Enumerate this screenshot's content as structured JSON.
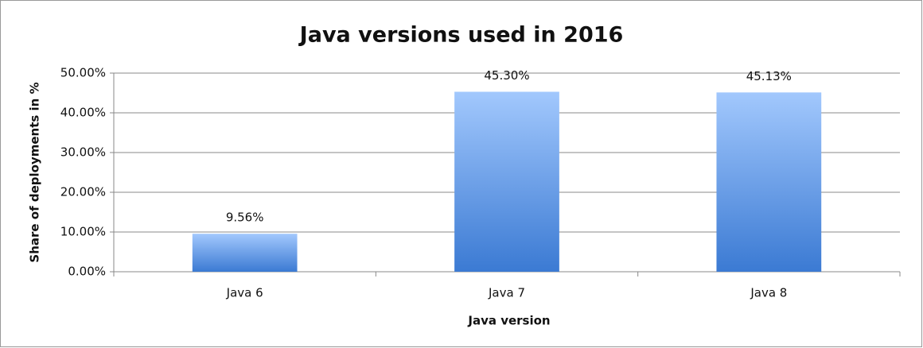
{
  "chart_data": {
    "type": "bar",
    "title": "Java versions used in 2016",
    "x_label": "Java version",
    "y_label": "Share of deployments in %",
    "categories": [
      "Java 6",
      "Java 7",
      "Java 8"
    ],
    "values": [
      9.56,
      45.3,
      45.13
    ],
    "value_labels": [
      "9.56%",
      "45.30%",
      "45.13%"
    ],
    "color": "#6fa3ea",
    "ylim": [
      0,
      50
    ],
    "yticks": [
      {
        "value": 0,
        "label": "0.00%"
      },
      {
        "value": 10,
        "label": "10.00%"
      },
      {
        "value": 20,
        "label": "20.00%"
      },
      {
        "value": 30,
        "label": "30.00%"
      },
      {
        "value": 40,
        "label": "40.00%"
      },
      {
        "value": 50,
        "label": "50.00%"
      }
    ],
    "grid": true
  }
}
